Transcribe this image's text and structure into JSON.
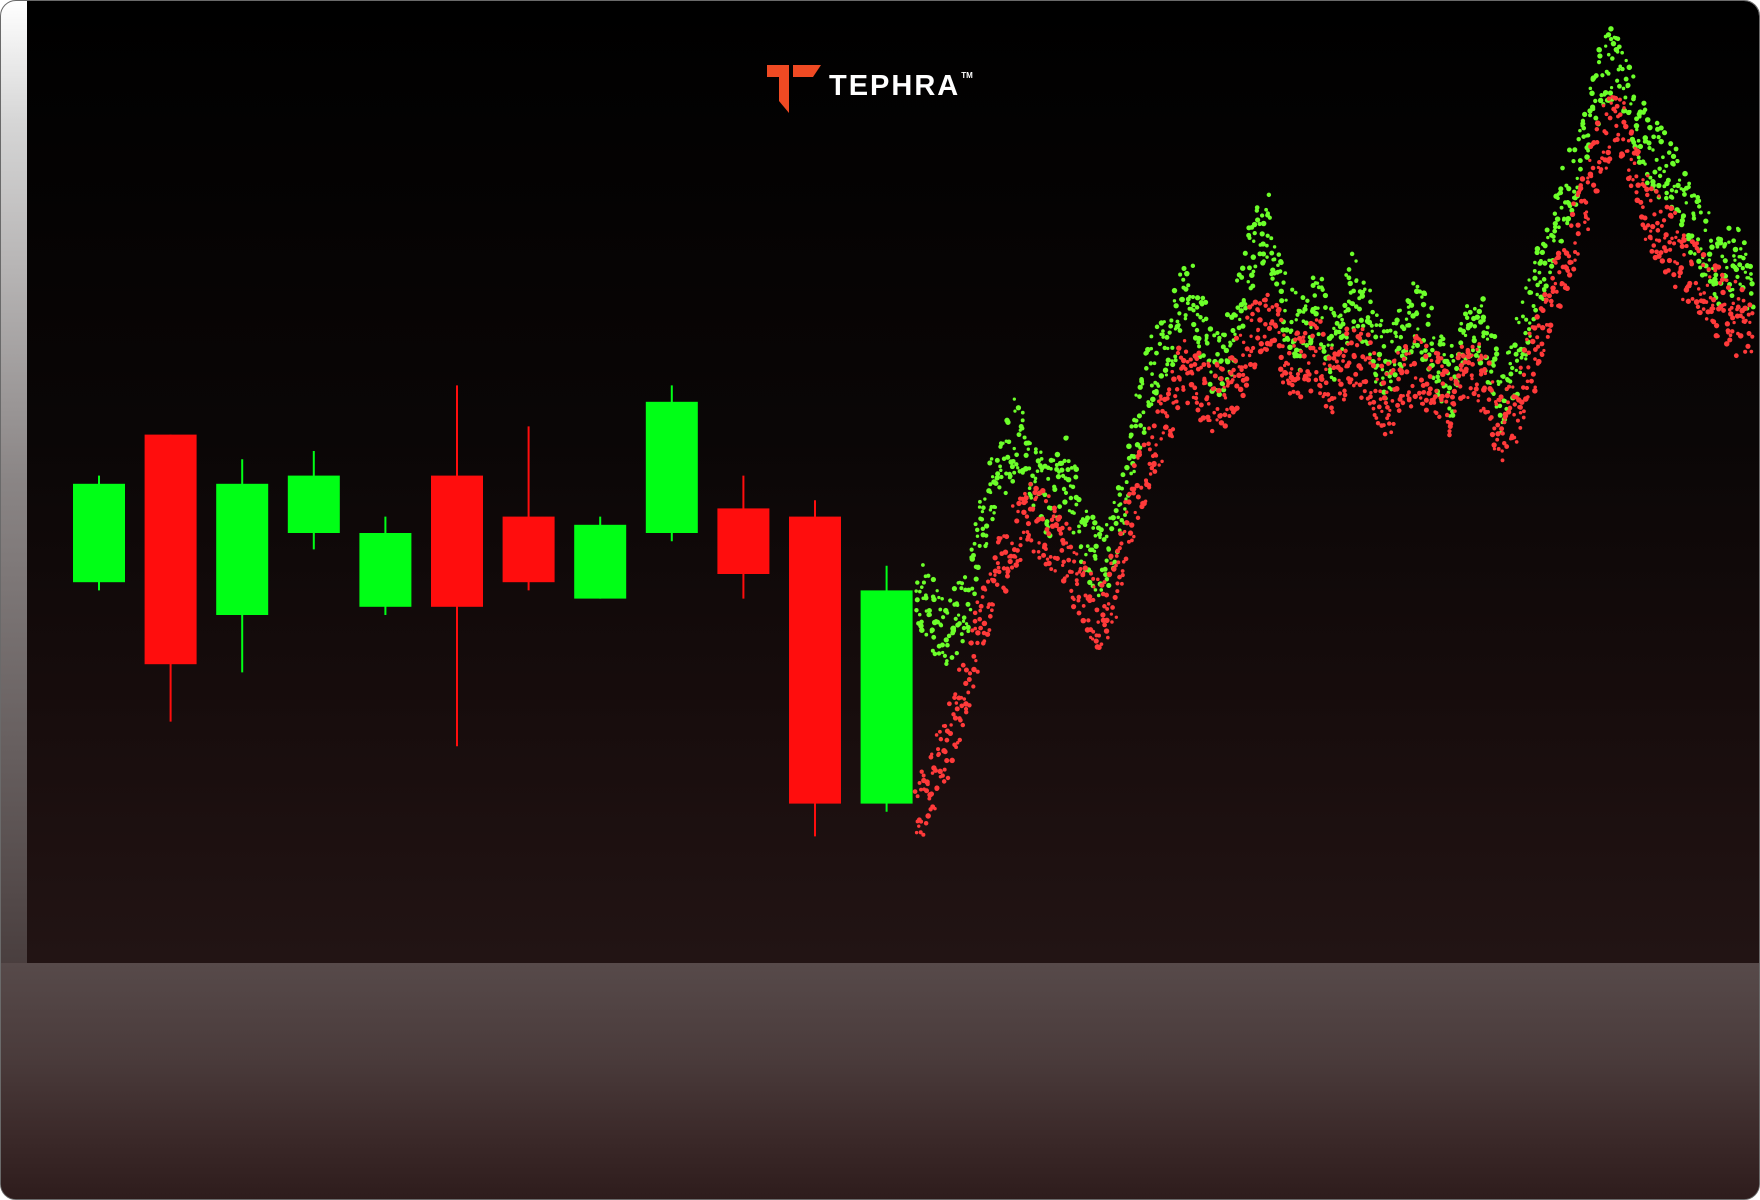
{
  "brand": {
    "name": "TEPHRA",
    "trademark": "TM",
    "icon": "tephra-logo-icon",
    "color": "#f04a23"
  },
  "colors": {
    "up": "#00ff16",
    "down": "#ff0d0d",
    "background": "#000000"
  },
  "chart_data": {
    "type": "candlestick",
    "grid": false,
    "legend": "none",
    "ylim": [
      0,
      100
    ],
    "candles": [
      {
        "open": 34,
        "close": 46,
        "high": 47,
        "low": 33
      },
      {
        "open": 52,
        "close": 24,
        "high": 52,
        "low": 17
      },
      {
        "open": 30,
        "close": 46,
        "high": 49,
        "low": 23
      },
      {
        "open": 40,
        "close": 47,
        "high": 50,
        "low": 38
      },
      {
        "open": 31,
        "close": 40,
        "high": 42,
        "low": 30
      },
      {
        "open": 47,
        "close": 31,
        "high": 58,
        "low": 14
      },
      {
        "open": 42,
        "close": 34,
        "high": 53,
        "low": 33
      },
      {
        "open": 32,
        "close": 41,
        "high": 42,
        "low": 32
      },
      {
        "open": 40,
        "close": 56,
        "high": 58,
        "low": 39
      },
      {
        "open": 43,
        "close": 35,
        "high": 47,
        "low": 32
      },
      {
        "open": 42,
        "close": 7,
        "high": 44,
        "low": 3
      },
      {
        "open": 7,
        "close": 33,
        "high": 36,
        "low": 6
      }
    ],
    "scatter_series": [
      {
        "color": "#6cff2a",
        "x": [
          0,
          2,
          4,
          6,
          8,
          10,
          12,
          14,
          16,
          18,
          20,
          22,
          24,
          26,
          28,
          30,
          32,
          34,
          36,
          38,
          40,
          42,
          44,
          46,
          48,
          50,
          52,
          54,
          56,
          58,
          60,
          62,
          64,
          66,
          68,
          70,
          72,
          74,
          76,
          78,
          80,
          82,
          84,
          86,
          88,
          90,
          92,
          94,
          96,
          98,
          100
        ],
        "y": [
          33,
          30,
          28,
          31,
          42,
          48,
          52,
          47,
          44,
          48,
          40,
          36,
          40,
          52,
          60,
          62,
          70,
          66,
          60,
          64,
          74,
          78,
          68,
          64,
          68,
          62,
          70,
          66,
          60,
          64,
          67,
          62,
          58,
          66,
          64,
          56,
          62,
          70,
          76,
          82,
          88,
          96,
          98,
          90,
          86,
          84,
          80,
          76,
          72,
          74,
          70
        ]
      },
      {
        "color": "#ff3a3a",
        "x": [
          0,
          2,
          4,
          6,
          8,
          10,
          12,
          14,
          16,
          18,
          20,
          22,
          24,
          26,
          28,
          30,
          32,
          34,
          36,
          38,
          40,
          42,
          44,
          46,
          48,
          50,
          52,
          54,
          56,
          58,
          60,
          62,
          64,
          66,
          68,
          70,
          72,
          74,
          76,
          78,
          80,
          82,
          84,
          86,
          88,
          90,
          92,
          94,
          96,
          98,
          100
        ],
        "y": [
          6,
          10,
          15,
          22,
          30,
          36,
          40,
          42,
          40,
          38,
          32,
          30,
          34,
          44,
          50,
          54,
          60,
          58,
          56,
          58,
          64,
          66,
          62,
          60,
          62,
          58,
          62,
          60,
          56,
          58,
          60,
          58,
          56,
          60,
          58,
          52,
          56,
          62,
          68,
          74,
          80,
          88,
          90,
          84,
          78,
          76,
          72,
          70,
          68,
          66,
          64
        ]
      }
    ]
  }
}
